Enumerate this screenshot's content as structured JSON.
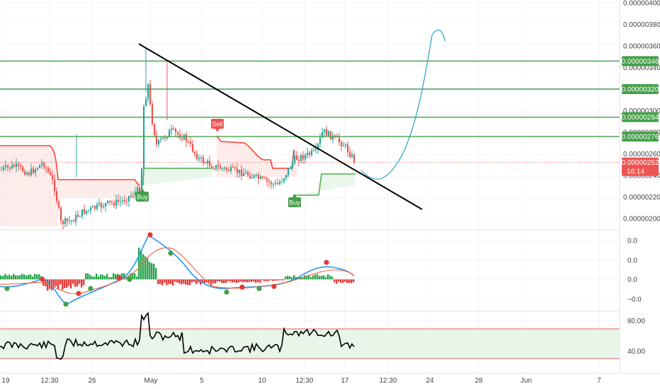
{
  "chart_data": {
    "type": "candlestick",
    "price_axis": {
      "ticks": [
        "0.00000400",
        "0.00000380",
        "0.00000360",
        "0.00000340",
        "0.00000300",
        "0.00000280",
        "0.00000260",
        "0.00000240",
        "0.00000220",
        "0.00000200"
      ],
      "range": [
        1.9e-06,
        4e-06
      ]
    },
    "horizontal_levels": [
      {
        "value": 3.46e-06,
        "label": "0.00000346"
      },
      {
        "value": 3.2e-06,
        "label": "0.00000320"
      },
      {
        "value": 2.94e-06,
        "label": "0.00000294"
      },
      {
        "value": 2.76e-06,
        "label": "0.00000276"
      }
    ],
    "current_price": {
      "value": 2.52e-06,
      "label": "0.00000252",
      "countdown": "16:14"
    },
    "signals": [
      {
        "text": "Buy",
        "kind": "buy"
      },
      {
        "text": "Sell",
        "kind": "sell"
      },
      {
        "text": "Buy",
        "kind": "buy"
      }
    ],
    "oscillator_axis": {
      "ticks": [
        "0.0",
        "0.0",
        "0.0",
        "−0.0"
      ]
    },
    "rsi_axis": {
      "ticks": [
        "80.00",
        "40.00"
      ],
      "upper": 80,
      "lower": 40
    },
    "time_axis": {
      "ticks": [
        "19",
        "12:30",
        "26",
        "May",
        "5",
        "10",
        "12:30",
        "17",
        "12:30",
        "24",
        "28",
        "Jun",
        "7"
      ]
    },
    "colors": {
      "up": "#26a69a",
      "down": "#ef5350",
      "level": "#43a047",
      "trendline": "#000000",
      "projection": "#2196f3",
      "supertrend_up": "#4caf50",
      "supertrend_down": "#f44336",
      "rsi_band": "#e8f5e9"
    }
  }
}
